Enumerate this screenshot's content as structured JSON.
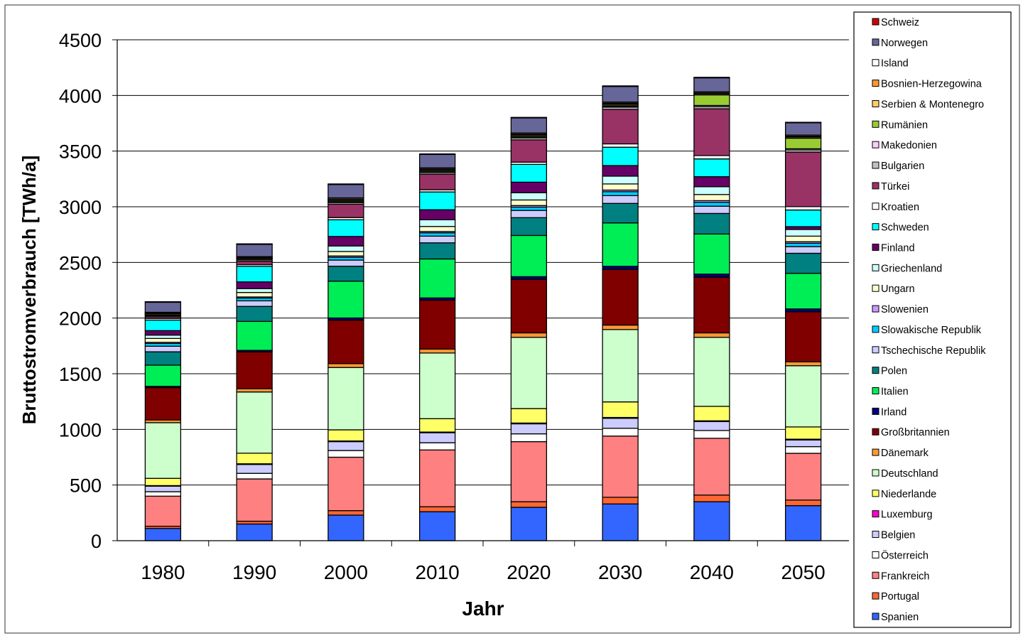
{
  "chart_data": {
    "type": "bar",
    "stacked": true,
    "xlabel": "Jahr",
    "ylabel": "Bruttostromverbrauch [TWh/a]",
    "ylim": [
      0,
      4500
    ],
    "yticks": [
      0,
      500,
      1000,
      1500,
      2000,
      2500,
      3000,
      3500,
      4000,
      4500
    ],
    "grid": true,
    "legend": "right",
    "categories": [
      "1980",
      "1990",
      "2000",
      "2010",
      "2020",
      "2030",
      "2040",
      "2050"
    ],
    "series": [
      {
        "name": "Spanien",
        "color": "#3366ff",
        "values": [
          110,
          150,
          230,
          260,
          300,
          330,
          350,
          315
        ]
      },
      {
        "name": "Portugal",
        "color": "#ff6633",
        "values": [
          20,
          25,
          40,
          45,
          50,
          60,
          60,
          50
        ]
      },
      {
        "name": "Frankreich",
        "color": "#ff8080",
        "values": [
          270,
          380,
          480,
          510,
          540,
          550,
          510,
          420
        ]
      },
      {
        "name": "Österreich",
        "color": "#ffffff",
        "values": [
          40,
          50,
          60,
          65,
          70,
          70,
          70,
          60
        ]
      },
      {
        "name": "Belgien",
        "color": "#ccccff",
        "values": [
          50,
          80,
          80,
          90,
          90,
          90,
          80,
          60
        ]
      },
      {
        "name": "Luxemburg",
        "color": "#ff00cc",
        "values": [
          5,
          6,
          6,
          6,
          7,
          7,
          7,
          7
        ]
      },
      {
        "name": "Niederlande",
        "color": "#ffff66",
        "values": [
          65,
          95,
          100,
          120,
          130,
          140,
          130,
          110
        ]
      },
      {
        "name": "Deutschland",
        "color": "#ccffcc",
        "values": [
          500,
          550,
          560,
          590,
          640,
          650,
          620,
          550
        ]
      },
      {
        "name": "Dänemark",
        "color": "#ff9933",
        "values": [
          25,
          30,
          35,
          35,
          40,
          40,
          40,
          35
        ]
      },
      {
        "name": "Großbritannien",
        "color": "#800000",
        "values": [
          290,
          330,
          390,
          440,
          480,
          500,
          500,
          450
        ]
      },
      {
        "name": "Irland",
        "color": "#000080",
        "values": [
          12,
          14,
          20,
          20,
          25,
          28,
          28,
          25
        ]
      },
      {
        "name": "Italien",
        "color": "#00ee55",
        "values": [
          190,
          260,
          330,
          350,
          370,
          390,
          360,
          320
        ]
      },
      {
        "name": "Polen",
        "color": "#008080",
        "values": [
          120,
          135,
          135,
          145,
          160,
          175,
          185,
          180
        ]
      },
      {
        "name": "Tschechische Republik",
        "color": "#ccccff",
        "values": [
          50,
          50,
          55,
          60,
          65,
          70,
          65,
          60
        ]
      },
      {
        "name": "Slowakische Republik",
        "color": "#00ccff",
        "values": [
          25,
          25,
          25,
          30,
          30,
          35,
          35,
          30
        ]
      },
      {
        "name": "Slowenien",
        "color": "#cc99ff",
        "values": [
          10,
          10,
          12,
          12,
          14,
          15,
          15,
          14
        ]
      },
      {
        "name": "Ungarn",
        "color": "#ffffcc",
        "values": [
          35,
          40,
          40,
          45,
          50,
          55,
          55,
          50
        ]
      },
      {
        "name": "Griechenland",
        "color": "#ccffff",
        "values": [
          30,
          35,
          50,
          60,
          65,
          70,
          70,
          60
        ]
      },
      {
        "name": "Finland",
        "color": "#660066",
        "values": [
          40,
          60,
          85,
          90,
          95,
          95,
          90,
          25
        ]
      },
      {
        "name": "Schweden",
        "color": "#00ffff",
        "values": [
          95,
          140,
          150,
          160,
          160,
          165,
          160,
          150
        ]
      },
      {
        "name": "Kroatien",
        "color": "#ffffff",
        "values": [
          15,
          15,
          20,
          20,
          20,
          30,
          30,
          30
        ]
      },
      {
        "name": "Türkei",
        "color": "#993366",
        "values": [
          15,
          30,
          120,
          140,
          200,
          310,
          420,
          490
        ]
      },
      {
        "name": "Bulgarien",
        "color": "#c0c0c0",
        "values": [
          10,
          12,
          15,
          15,
          18,
          20,
          20,
          20
        ]
      },
      {
        "name": "Makedonien",
        "color": "#ffccff",
        "values": [
          5,
          5,
          6,
          6,
          7,
          8,
          10,
          10
        ]
      },
      {
        "name": "Rumänien",
        "color": "#99cc33",
        "values": [
          10,
          10,
          10,
          10,
          10,
          10,
          95,
          95
        ]
      },
      {
        "name": "Serbien & Montenegro",
        "color": "#ffcc66",
        "values": [
          5,
          5,
          10,
          10,
          10,
          10,
          10,
          10
        ]
      },
      {
        "name": "Bosnien-Herzegowina",
        "color": "#ff9933",
        "values": [
          5,
          5,
          6,
          6,
          7,
          8,
          8,
          8
        ]
      },
      {
        "name": "Island",
        "color": "#ffffff",
        "values": [
          5,
          5,
          10,
          10,
          10,
          10,
          10,
          10
        ]
      },
      {
        "name": "Norwegen",
        "color": "#666699",
        "values": [
          90,
          110,
          120,
          120,
          135,
          140,
          125,
          110
        ]
      },
      {
        "name": "Schweiz",
        "color": "#cc0000",
        "values": [
          5,
          5,
          5,
          5,
          5,
          5,
          5,
          5
        ]
      }
    ]
  }
}
